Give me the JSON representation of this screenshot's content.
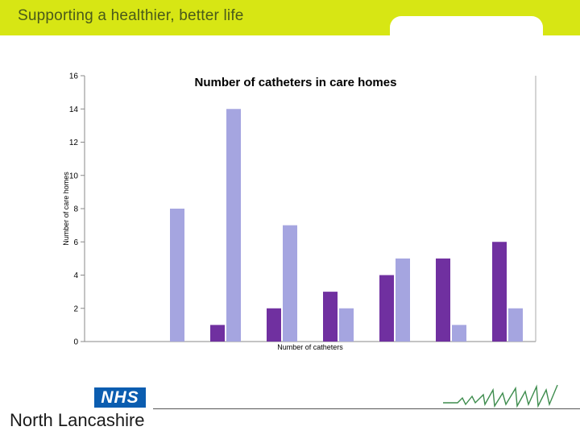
{
  "banner": {
    "text": "Supporting a healthier, better life",
    "color": "#d7e614"
  },
  "footer": {
    "logo_text": "NHS",
    "org_name": "North Lancashire",
    "logo_color": "#0b5db0"
  },
  "chart_data": {
    "type": "bar",
    "title": "Number of catheters in care homes",
    "xlabel": "Number of catheters",
    "ylabel": "Number of care homes",
    "ylim": [
      0,
      16
    ],
    "yticks": [
      0,
      2,
      4,
      6,
      8,
      10,
      12,
      14,
      16
    ],
    "grid": false,
    "legend": "none",
    "categories": [
      "",
      "",
      "",
      "",
      "",
      "",
      "",
      ""
    ],
    "series": [
      {
        "values": [
          0,
          0,
          1,
          2,
          3,
          4,
          5,
          6
        ],
        "color": "#7030a0"
      },
      {
        "values": [
          0,
          8,
          14,
          7,
          2,
          5,
          1,
          2
        ],
        "color": "#a5a5e0"
      }
    ]
  }
}
